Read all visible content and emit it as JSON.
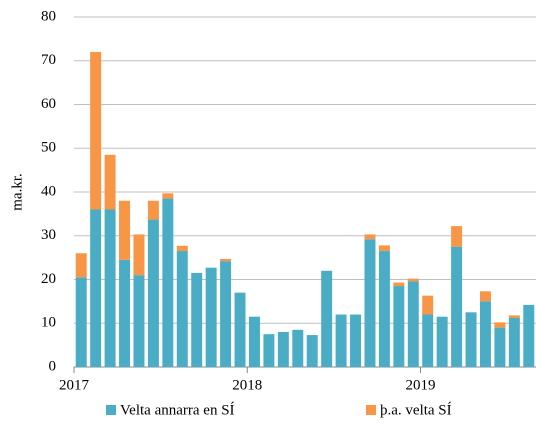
{
  "chart_data": {
    "type": "stacked_bar",
    "ylabel": "ma.kr.",
    "categories": [
      "2017",
      null,
      null,
      null,
      null,
      null,
      null,
      null,
      null,
      null,
      null,
      null,
      "2018",
      null,
      null,
      null,
      null,
      null,
      null,
      null,
      null,
      null,
      null,
      null,
      "2019",
      null,
      null,
      null,
      null,
      null,
      null,
      null
    ],
    "series": [
      {
        "name": "Velta annarra en SÍ",
        "color": "#4bacc6",
        "values": [
          20.5,
          36,
          36,
          24.5,
          21,
          33.7,
          38.5,
          26.5,
          21.5,
          22.7,
          24.2,
          17,
          11.5,
          7.5,
          8,
          8.5,
          7.3,
          22,
          12,
          12,
          29.2,
          26.5,
          18.5,
          19.6,
          12,
          11.5,
          27.5,
          12.5,
          15,
          9,
          11.2,
          14.2
        ]
      },
      {
        "name": "þ.a. velta SÍ",
        "color": "#f79646",
        "values": [
          5.5,
          36,
          12.5,
          13.5,
          9.3,
          4.3,
          1.2,
          1.2,
          0,
          0,
          0.5,
          0,
          0,
          0,
          0,
          0,
          0,
          0,
          0,
          0,
          1.1,
          1.3,
          0.8,
          0.6,
          4.3,
          0,
          4.7,
          0,
          2.3,
          1.2,
          0.6,
          0
        ]
      }
    ],
    "ylim": [
      0,
      80
    ],
    "yticks": [
      0,
      10,
      20,
      30,
      40,
      50,
      60,
      70,
      80
    ],
    "grid": true
  }
}
